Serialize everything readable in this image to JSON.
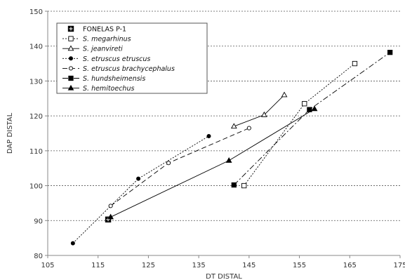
{
  "chart_data": {
    "type": "line",
    "xlabel": "DT DISTAL",
    "ylabel": "DAP DISTAL",
    "xlim": [
      105,
      175
    ],
    "ylim": [
      80,
      150
    ],
    "xticks": [
      105,
      115,
      125,
      135,
      145,
      155,
      165,
      175
    ],
    "yticks": [
      80,
      90,
      100,
      110,
      120,
      130,
      140,
      150
    ],
    "grid": "horizontal-dotted",
    "legend_position": "top-left",
    "series": [
      {
        "name": "FONELAS P-1",
        "style": "point-only",
        "marker": "filled-square-white-cross",
        "color": "#000000",
        "points": [
          [
            117,
            90.3
          ]
        ]
      },
      {
        "name": "S. megarhinus",
        "style": "dotted",
        "marker": "open-square",
        "color": "#000000",
        "points": [
          [
            144,
            100
          ],
          [
            156,
            123.5
          ],
          [
            166,
            135
          ]
        ]
      },
      {
        "name": "S. jeanvireti",
        "style": "solid",
        "marker": "open-triangle",
        "color": "#000000",
        "points": [
          [
            142,
            117
          ],
          [
            148,
            120.3
          ],
          [
            152,
            126
          ]
        ]
      },
      {
        "name": "S. etruscus etruscus",
        "style": "dotted",
        "marker": "filled-circle",
        "color": "#000000",
        "points": [
          [
            110,
            83.5
          ],
          [
            123,
            102
          ],
          [
            137,
            114.2
          ]
        ]
      },
      {
        "name": "S. etruscus brachycephalus",
        "style": "dashed",
        "marker": "open-circle",
        "color": "#000000",
        "points": [
          [
            117.5,
            94.2
          ],
          [
            129,
            106.5
          ],
          [
            145,
            116.5
          ]
        ]
      },
      {
        "name": "S. hundsheimensis",
        "style": "dash-dot",
        "marker": "filled-square",
        "color": "#000000",
        "points": [
          [
            142,
            100.2
          ],
          [
            157,
            121.8
          ],
          [
            173,
            138.2
          ]
        ]
      },
      {
        "name": "S. hemitoechus",
        "style": "solid",
        "marker": "filled-triangle",
        "color": "#000000",
        "points": [
          [
            117.5,
            91
          ],
          [
            141,
            107.2
          ],
          [
            158,
            122
          ]
        ]
      }
    ]
  }
}
